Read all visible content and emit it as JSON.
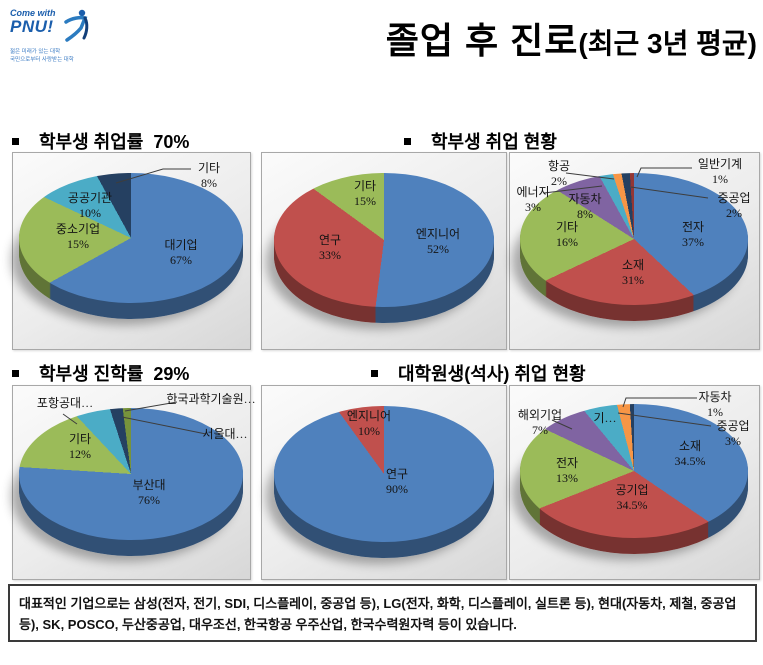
{
  "logo": {
    "come_with": "Come with",
    "pnu": "PNU!",
    "tagline1": "젊은 미래가 있는 대학",
    "tagline2": "국민으로부터 사랑받는 대학"
  },
  "title": {
    "main": "졸업 후 진로",
    "sub": "(최근 3년 평균)"
  },
  "sections": [
    {
      "heading": "학부생 취업률  70%"
    },
    {
      "heading": "학부생 취업 현황"
    },
    {
      "heading": "학부생 진학률  29%"
    },
    {
      "heading": "대학원생(석사) 취업 현황"
    }
  ],
  "chart_data": [
    {
      "type": "pie",
      "title": "학부생 취업률 70%",
      "slices": [
        {
          "label": "대기업",
          "value": 67,
          "display": "67%",
          "color": "#4F81BD"
        },
        {
          "label": "중소기업",
          "value": 15,
          "display": "15%",
          "color": "#9BBB59"
        },
        {
          "label": "공공기관",
          "value": 10,
          "display": "10%",
          "color": "#4BACC6"
        },
        {
          "label": "기타",
          "value": 8,
          "display": "8%",
          "color": "#254061"
        }
      ]
    },
    {
      "type": "pie",
      "title": "학부생 취업 현황",
      "slices": [
        {
          "label": "엔지니어",
          "value": 52,
          "display": "52%",
          "color": "#4F81BD"
        },
        {
          "label": "연구",
          "value": 33,
          "display": "33%",
          "color": "#C0504D"
        },
        {
          "label": "기타",
          "value": 15,
          "display": "15%",
          "color": "#9BBB59"
        }
      ]
    },
    {
      "type": "pie",
      "title": "학부생 취업 현황",
      "slices": [
        {
          "label": "전자",
          "value": 37,
          "display": "37%",
          "color": "#4F81BD"
        },
        {
          "label": "소재",
          "value": 31,
          "display": "31%",
          "color": "#C0504D"
        },
        {
          "label": "기타",
          "value": 16,
          "display": "16%",
          "color": "#9BBB59"
        },
        {
          "label": "자동차",
          "value": 8,
          "display": "8%",
          "color": "#8064A2"
        },
        {
          "label": "에너지",
          "value": 3,
          "display": "3%",
          "color": "#4BACC6"
        },
        {
          "label": "항공",
          "value": 2,
          "display": "2%",
          "color": "#F79646"
        },
        {
          "label": "중공업",
          "value": 2,
          "display": "2%",
          "color": "#254061"
        },
        {
          "label": "일반기계",
          "value": 1,
          "display": "1%",
          "color": "#943634"
        }
      ]
    },
    {
      "type": "pie",
      "title": "학부생 진학률 29%",
      "slices": [
        {
          "label": "부산대",
          "value": 76,
          "display": "76%",
          "color": "#4F81BD"
        },
        {
          "label": "기타",
          "value": 12,
          "display": "12%",
          "color": "#9BBB59"
        },
        {
          "label": "포항공대…",
          "value": 7,
          "display": "",
          "color": "#4BACC6"
        },
        {
          "label": "서울대…",
          "value": 3,
          "display": "",
          "color": "#254061"
        },
        {
          "label": "한국과학기술원…",
          "value": 2,
          "display": "",
          "color": "#77933C"
        }
      ]
    },
    {
      "type": "pie",
      "title": "대학원생(석사) 취업 현황",
      "slices": [
        {
          "label": "연구",
          "value": 90,
          "display": "90%",
          "color": "#4F81BD"
        },
        {
          "label": "엔지니어",
          "value": 10,
          "display": "10%",
          "color": "#C0504D"
        }
      ]
    },
    {
      "type": "pie",
      "title": "대학원생(석사) 취업 현황",
      "slices": [
        {
          "label": "소재",
          "value": 34.5,
          "display": "34.5%",
          "color": "#4F81BD"
        },
        {
          "label": "공기업",
          "value": 34.5,
          "display": "34.5%",
          "color": "#C0504D"
        },
        {
          "label": "전자",
          "value": 13,
          "display": "13%",
          "color": "#9BBB59"
        },
        {
          "label": "해외기업",
          "value": 7,
          "display": "7%",
          "color": "#8064A2"
        },
        {
          "label": "기…",
          "value": 7,
          "display": "",
          "color": "#4BACC6"
        },
        {
          "label": "중공업",
          "value": 3,
          "display": "3%",
          "color": "#F79646"
        },
        {
          "label": "자동차",
          "value": 1,
          "display": "1%",
          "color": "#254061"
        }
      ]
    }
  ],
  "footer": {
    "text": "대표적인 기업으로는 삼성(전자, 전기, SDI, 디스플레이, 중공업 등), LG(전자, 화학, 디스플레이, 실트론 등), 현대(자동차, 제철, 중공업 등), SK,  POSCO, 두산중공업, 대우조선, 한국항공 우주산업, 한국수력원자력 등이 있습니다."
  }
}
